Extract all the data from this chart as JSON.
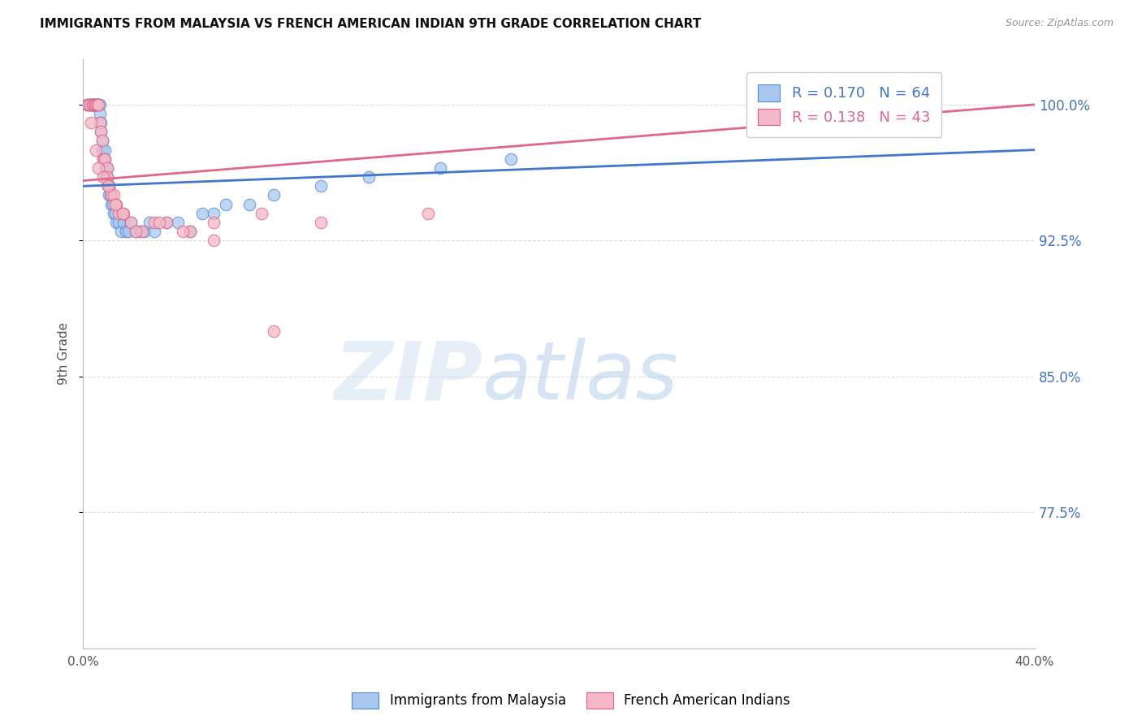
{
  "title": "IMMIGRANTS FROM MALAYSIA VS FRENCH AMERICAN INDIAN 9TH GRADE CORRELATION CHART",
  "source": "Source: ZipAtlas.com",
  "ylabel": "9th Grade",
  "xlim": [
    0.0,
    40.0
  ],
  "ylim": [
    70.0,
    102.5
  ],
  "yticks": [
    77.5,
    85.0,
    92.5,
    100.0
  ],
  "ytick_labels": [
    "77.5%",
    "85.0%",
    "92.5%",
    "100.0%"
  ],
  "xticks": [
    0.0,
    5.0,
    10.0,
    15.0,
    20.0,
    25.0,
    30.0,
    35.0,
    40.0
  ],
  "xtick_labels": [
    "0.0%",
    "",
    "",
    "",
    "",
    "",
    "",
    "",
    "40.0%"
  ],
  "blue_R": 0.17,
  "blue_N": 64,
  "pink_R": 0.138,
  "pink_N": 43,
  "blue_label": "Immigrants from Malaysia",
  "pink_label": "French American Indians",
  "blue_color": "#A8C8F0",
  "pink_color": "#F5B8C8",
  "blue_edge_color": "#5588CC",
  "pink_edge_color": "#E06080",
  "blue_line_color": "#4477CC",
  "pink_line_color": "#E06888",
  "axis_color": "#BBBBBB",
  "tick_label_color_y": "#4472C4",
  "grid_color": "#DDDDDD",
  "blue_scatter_x": [
    0.15,
    0.2,
    0.25,
    0.3,
    0.35,
    0.35,
    0.4,
    0.4,
    0.45,
    0.45,
    0.5,
    0.5,
    0.55,
    0.55,
    0.6,
    0.6,
    0.6,
    0.65,
    0.65,
    0.7,
    0.7,
    0.75,
    0.75,
    0.8,
    0.8,
    0.85,
    0.9,
    0.9,
    0.95,
    0.95,
    1.0,
    1.0,
    1.05,
    1.1,
    1.1,
    1.15,
    1.2,
    1.25,
    1.3,
    1.35,
    1.4,
    1.5,
    1.6,
    1.7,
    1.8,
    1.9,
    2.0,
    2.2,
    2.4,
    2.6,
    2.8,
    3.0,
    3.5,
    4.0,
    4.5,
    5.0,
    5.5,
    6.0,
    7.0,
    8.0,
    10.0,
    12.0,
    15.0,
    18.0
  ],
  "blue_scatter_y": [
    100.0,
    100.0,
    100.0,
    100.0,
    100.0,
    100.0,
    100.0,
    100.0,
    100.0,
    100.0,
    100.0,
    100.0,
    100.0,
    100.0,
    100.0,
    100.0,
    100.0,
    100.0,
    100.0,
    100.0,
    99.5,
    99.0,
    98.5,
    98.0,
    97.5,
    97.0,
    97.5,
    97.0,
    96.5,
    96.0,
    96.5,
    96.0,
    95.5,
    95.5,
    95.0,
    95.0,
    94.5,
    94.5,
    94.0,
    94.0,
    93.5,
    93.5,
    93.0,
    93.5,
    93.0,
    93.0,
    93.5,
    93.0,
    93.0,
    93.0,
    93.5,
    93.0,
    93.5,
    93.5,
    93.0,
    94.0,
    94.0,
    94.5,
    94.5,
    95.0,
    95.5,
    96.0,
    96.5,
    97.0
  ],
  "pink_scatter_x": [
    0.2,
    0.3,
    0.4,
    0.45,
    0.5,
    0.55,
    0.6,
    0.65,
    0.7,
    0.75,
    0.8,
    0.85,
    0.9,
    1.0,
    1.0,
    1.1,
    1.2,
    1.3,
    1.4,
    1.5,
    1.7,
    2.0,
    2.5,
    3.0,
    3.5,
    4.5,
    5.5,
    7.5,
    10.0,
    14.5,
    0.35,
    0.55,
    0.65,
    0.85,
    1.05,
    1.35,
    1.65,
    2.2,
    3.2,
    4.2,
    5.5,
    8.0,
    35.0
  ],
  "pink_scatter_y": [
    100.0,
    100.0,
    100.0,
    100.0,
    100.0,
    100.0,
    100.0,
    100.0,
    99.0,
    98.5,
    98.0,
    97.0,
    97.0,
    96.5,
    96.0,
    95.5,
    95.0,
    95.0,
    94.5,
    94.0,
    94.0,
    93.5,
    93.0,
    93.5,
    93.5,
    93.0,
    93.5,
    94.0,
    93.5,
    94.0,
    99.0,
    97.5,
    96.5,
    96.0,
    95.5,
    94.5,
    94.0,
    93.0,
    93.5,
    93.0,
    92.5,
    87.5,
    100.0
  ],
  "blue_trend_x": [
    0.0,
    40.0
  ],
  "blue_trend_y": [
    95.5,
    97.5
  ],
  "pink_trend_x": [
    0.0,
    40.0
  ],
  "pink_trend_y": [
    95.8,
    100.0
  ]
}
